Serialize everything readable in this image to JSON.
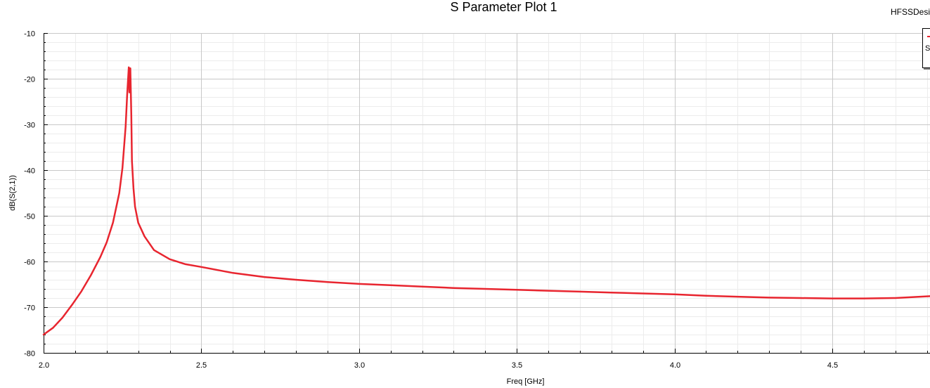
{
  "app_label": "HFSSDesi",
  "colors": {
    "series": "#e8252f",
    "grid_major": "#c8c8c8",
    "grid_minor": "#ececec"
  },
  "legend": {
    "entry_text": "S"
  },
  "chart_data": {
    "type": "line",
    "title": "S Parameter Plot 1",
    "xlabel": "Freq [GHz]",
    "ylabel": "dB(S(2,1))",
    "xlim": [
      2.0,
      4.81
    ],
    "ylim": [
      -80,
      -10
    ],
    "xticks": [
      2.0,
      2.5,
      3.0,
      3.5,
      4.0,
      4.5
    ],
    "xtick_labels": [
      "2.0",
      "2.5",
      "3.0",
      "3.5",
      "4.0",
      "4.5"
    ],
    "yticks": [
      -10,
      -20,
      -30,
      -40,
      -50,
      -60,
      -70,
      -80
    ],
    "ytick_labels": [
      "-10",
      "-20",
      "-30",
      "-40",
      "-50",
      "-60",
      "-70",
      "-80"
    ],
    "grid": true,
    "legend_position": "top-right",
    "series": [
      {
        "x": [
          2.0,
          2.03,
          2.06,
          2.09,
          2.12,
          2.15,
          2.18,
          2.2,
          2.22,
          2.24,
          2.25,
          2.26,
          2.265,
          2.27,
          2.272,
          2.275,
          2.278,
          2.28,
          2.285,
          2.29,
          2.3,
          2.32,
          2.35,
          2.4,
          2.45,
          2.5,
          2.6,
          2.7,
          2.8,
          2.9,
          3.0,
          3.1,
          3.2,
          3.3,
          3.4,
          3.5,
          3.6,
          3.7,
          3.8,
          3.9,
          4.0,
          4.1,
          4.2,
          4.3,
          4.4,
          4.5,
          4.6,
          4.7,
          4.81
        ],
        "y": [
          -76.0,
          -74.5,
          -72.3,
          -69.5,
          -66.5,
          -63.0,
          -59.0,
          -55.8,
          -51.5,
          -45.0,
          -39.5,
          -30.5,
          -23.5,
          -17.5,
          -23.0,
          -17.7,
          -28.0,
          -38.0,
          -44.0,
          -48.0,
          -51.5,
          -54.5,
          -57.5,
          -59.5,
          -60.6,
          -61.2,
          -62.5,
          -63.4,
          -64.0,
          -64.5,
          -64.9,
          -65.2,
          -65.5,
          -65.8,
          -66.0,
          -66.2,
          -66.4,
          -66.6,
          -66.8,
          -67.0,
          -67.2,
          -67.5,
          -67.7,
          -67.9,
          -68.0,
          -68.1,
          -68.1,
          -68.0,
          -67.6
        ]
      }
    ]
  }
}
